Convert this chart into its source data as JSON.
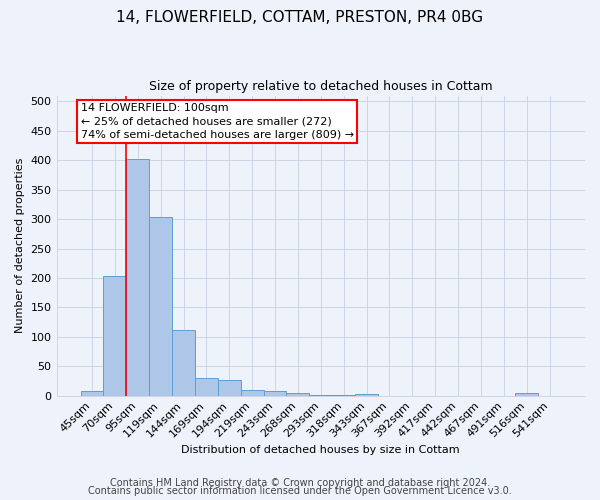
{
  "title": "14, FLOWERFIELD, COTTAM, PRESTON, PR4 0BG",
  "subtitle": "Size of property relative to detached houses in Cottam",
  "xlabel": "Distribution of detached houses by size in Cottam",
  "ylabel": "Number of detached properties",
  "bar_labels": [
    "45sqm",
    "70sqm",
    "95sqm",
    "119sqm",
    "144sqm",
    "169sqm",
    "194sqm",
    "219sqm",
    "243sqm",
    "268sqm",
    "293sqm",
    "318sqm",
    "343sqm",
    "367sqm",
    "392sqm",
    "417sqm",
    "442sqm",
    "467sqm",
    "491sqm",
    "516sqm",
    "541sqm"
  ],
  "bar_values": [
    8,
    204,
    403,
    303,
    112,
    30,
    27,
    9,
    8,
    4,
    1,
    1,
    3,
    0,
    0,
    0,
    0,
    0,
    0,
    4,
    0
  ],
  "bar_color": "#aec6e8",
  "bar_edge_color": "#5a9fd4",
  "vline_x": 1.5,
  "vline_color": "red",
  "annotation_text": "14 FLOWERFIELD: 100sqm\n← 25% of detached houses are smaller (272)\n74% of semi-detached houses are larger (809) →",
  "annotation_box_color": "white",
  "annotation_box_edge_color": "red",
  "ylim": [
    0,
    510
  ],
  "yticks": [
    0,
    50,
    100,
    150,
    200,
    250,
    300,
    350,
    400,
    450,
    500
  ],
  "footer1": "Contains HM Land Registry data © Crown copyright and database right 2024.",
  "footer2": "Contains public sector information licensed under the Open Government Licence v3.0.",
  "bg_color": "#eef2fb",
  "plot_bg_color": "#eef2fb",
  "title_fontsize": 11,
  "subtitle_fontsize": 9,
  "annotation_fontsize": 8,
  "footer_fontsize": 7,
  "tick_fontsize": 8,
  "ylabel_fontsize": 8,
  "xlabel_fontsize": 8
}
